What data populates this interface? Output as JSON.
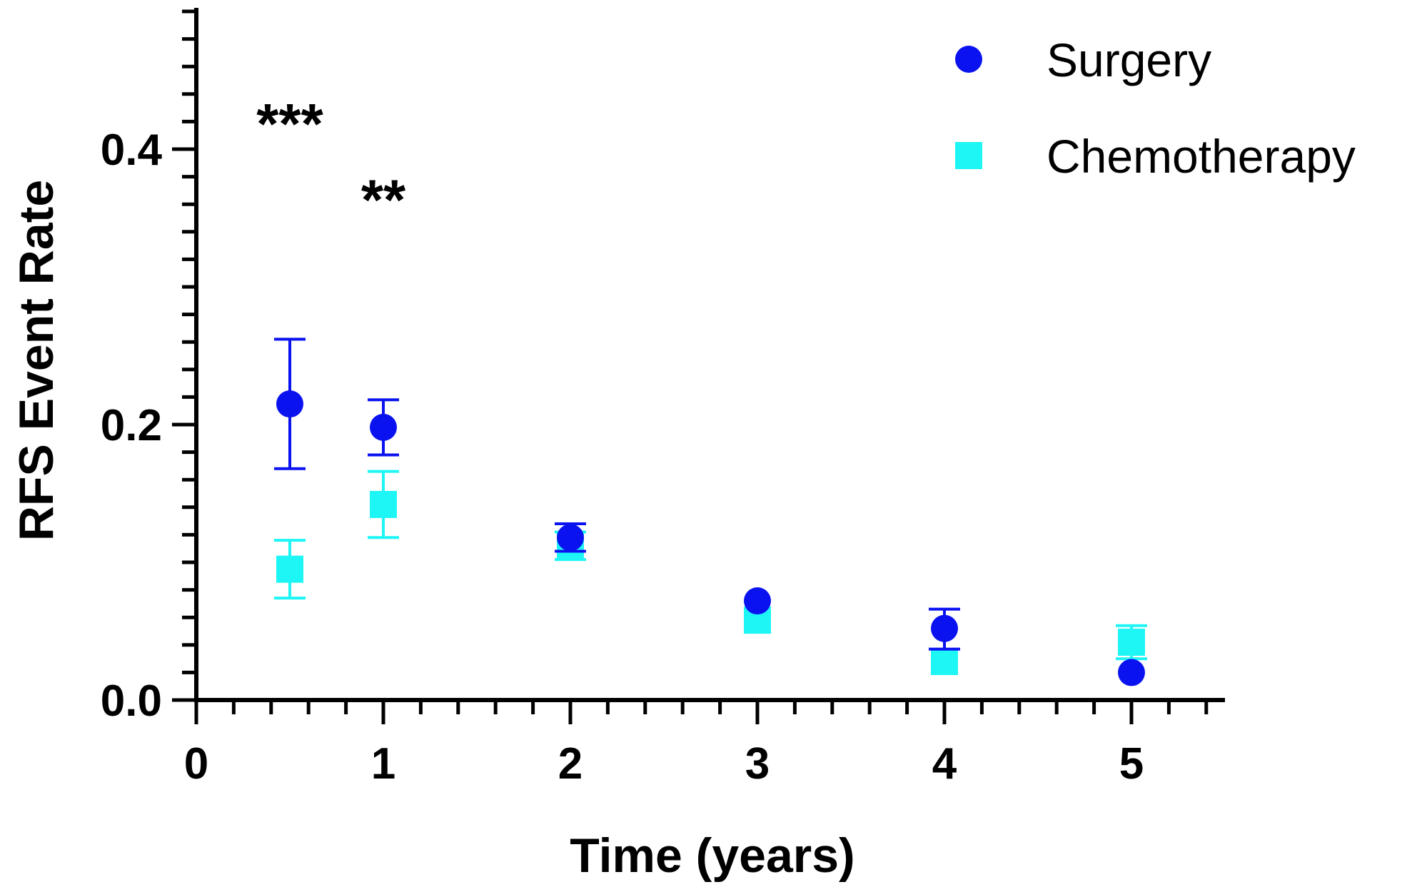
{
  "chart_data": {
    "type": "scatter",
    "title": "",
    "xlabel": "Time (years)",
    "ylabel": "RFS Event Rate",
    "xlim": [
      0,
      5.5
    ],
    "ylim": [
      0,
      0.5
    ],
    "x_ticks": [
      0,
      1,
      2,
      3,
      4,
      5
    ],
    "x_tick_labels": [
      "0",
      "1",
      "2",
      "3",
      "4",
      "5"
    ],
    "y_ticks": [
      0.0,
      0.2,
      0.4
    ],
    "y_tick_labels": [
      "0.0",
      "0.2",
      "0.4"
    ],
    "grid": false,
    "legend_position": "top-right",
    "series": [
      {
        "name": "Surgery",
        "marker": "circle",
        "color": "#0a12f0",
        "points": [
          {
            "x": 0.5,
            "y": 0.215,
            "err_low": 0.168,
            "err_high": 0.262
          },
          {
            "x": 1,
            "y": 0.198,
            "err_low": 0.178,
            "err_high": 0.218
          },
          {
            "x": 2,
            "y": 0.118,
            "err_low": 0.108,
            "err_high": 0.128
          },
          {
            "x": 3,
            "y": 0.072,
            "err_low": 0.072,
            "err_high": 0.072
          },
          {
            "x": 4,
            "y": 0.052,
            "err_low": 0.037,
            "err_high": 0.066
          },
          {
            "x": 5,
            "y": 0.02,
            "err_low": 0.02,
            "err_high": 0.02
          }
        ]
      },
      {
        "name": "Chemotherapy",
        "marker": "square",
        "color": "#1ef5f5",
        "points": [
          {
            "x": 0.5,
            "y": 0.095,
            "err_low": 0.074,
            "err_high": 0.116
          },
          {
            "x": 1,
            "y": 0.142,
            "err_low": 0.118,
            "err_high": 0.166
          },
          {
            "x": 2,
            "y": 0.112,
            "err_low": 0.102,
            "err_high": 0.122
          },
          {
            "x": 3,
            "y": 0.058,
            "err_low": 0.058,
            "err_high": 0.058
          },
          {
            "x": 4,
            "y": 0.028,
            "err_low": 0.028,
            "err_high": 0.028
          },
          {
            "x": 5,
            "y": 0.042,
            "err_low": 0.03,
            "err_high": 0.054
          }
        ]
      }
    ],
    "annotations": [
      {
        "text": "***",
        "x": 0.5,
        "y": 0.43
      },
      {
        "text": "**",
        "x": 1,
        "y": 0.375
      }
    ]
  }
}
